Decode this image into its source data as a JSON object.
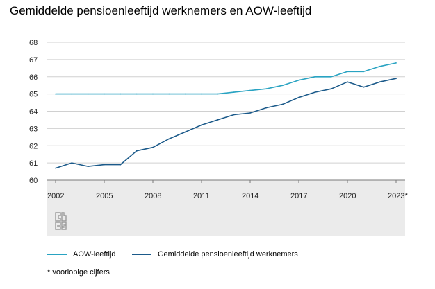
{
  "title": "Gemiddelde pensioenleeftijd werknemers en AOW-leeftijd",
  "footnote": "* voorlopige cijfers",
  "logo": "cbs-logo",
  "colors": {
    "aow": "#29a3c2",
    "pension": "#1b5a8a",
    "xaxis_band": "#ebebeb",
    "grid": "#d0d0d0"
  },
  "chart_data": {
    "type": "line",
    "title": "Gemiddelde pensioenleeftijd werknemers en AOW-leeftijd",
    "xlabel": "",
    "ylabel": "",
    "ylim": [
      60,
      68
    ],
    "yticks": [
      60,
      61,
      62,
      63,
      64,
      65,
      66,
      67,
      68
    ],
    "x": [
      2002,
      2003,
      2004,
      2005,
      2006,
      2007,
      2008,
      2009,
      2010,
      2011,
      2012,
      2013,
      2014,
      2015,
      2016,
      2017,
      2018,
      2019,
      2020,
      2021,
      2022,
      2023
    ],
    "xtick_labels": [
      {
        "x": 2002,
        "label": "2002"
      },
      {
        "x": 2005,
        "label": "2005"
      },
      {
        "x": 2008,
        "label": "2008"
      },
      {
        "x": 2011,
        "label": "2011"
      },
      {
        "x": 2014,
        "label": "2014"
      },
      {
        "x": 2017,
        "label": "2017"
      },
      {
        "x": 2020,
        "label": "2020"
      },
      {
        "x": 2023,
        "label": "2023*"
      }
    ],
    "grid": true,
    "legend_position": "bottom-left",
    "series": [
      {
        "name": "AOW-leeftijd",
        "color": "#29a3c2",
        "values": [
          65.0,
          65.0,
          65.0,
          65.0,
          65.0,
          65.0,
          65.0,
          65.0,
          65.0,
          65.0,
          65.0,
          65.1,
          65.2,
          65.3,
          65.5,
          65.8,
          66.0,
          66.0,
          66.3,
          66.3,
          66.6,
          66.8
        ]
      },
      {
        "name": "Gemiddelde pensioenleeftijd werknemers",
        "color": "#1b5a8a",
        "values": [
          60.7,
          61.0,
          60.8,
          60.9,
          60.9,
          61.7,
          61.9,
          62.4,
          62.8,
          63.2,
          63.5,
          63.8,
          63.9,
          64.2,
          64.4,
          64.8,
          65.1,
          65.3,
          65.7,
          65.4,
          65.7,
          65.9
        ]
      }
    ]
  }
}
